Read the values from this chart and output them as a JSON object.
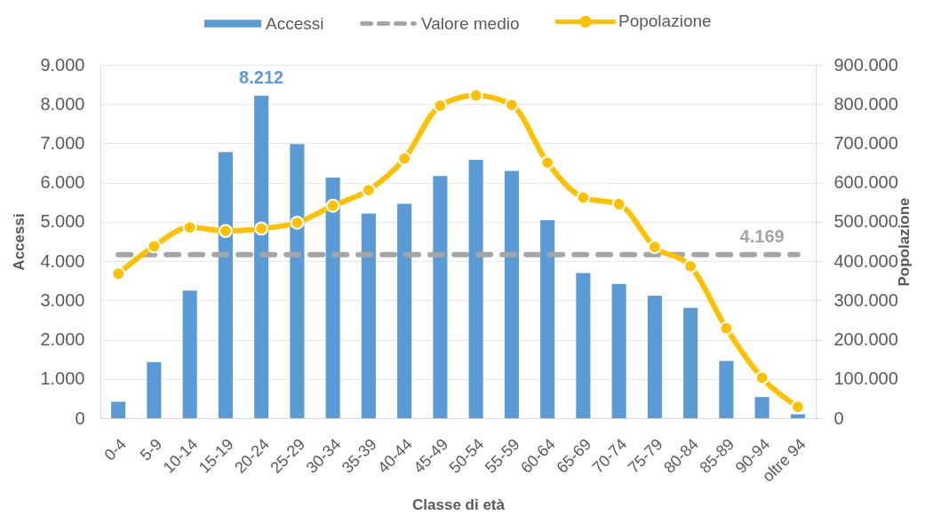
{
  "chart_data": {
    "type": "bar",
    "xlabel": "Classe di età",
    "ylabel": "Accessi",
    "y2label": "Popolazione",
    "categories": [
      "0-4",
      "5-9",
      "10-14",
      "15-19",
      "20-24",
      "25-29",
      "30-34",
      "35-39",
      "40-44",
      "45-49",
      "50-54",
      "55-59",
      "60-64",
      "65-69",
      "70-74",
      "75-79",
      "80-84",
      "85-89",
      "90-94",
      "oltre 94"
    ],
    "ylim": [
      0,
      9000
    ],
    "yticks": [
      0,
      {
        "value": 1000,
        "label": "1.000"
      },
      {
        "value": 2000,
        "label": "2.000"
      },
      {
        "value": 3000,
        "label": "3.000"
      },
      {
        "value": 4000,
        "label": "4.000"
      },
      {
        "value": 5000,
        "label": "5.000"
      },
      {
        "value": 6000,
        "label": "6.000"
      },
      {
        "value": 7000,
        "label": "7.000"
      },
      {
        "value": 8000,
        "label": "8.000"
      },
      {
        "value": 9000,
        "label": "9.000"
      }
    ],
    "y2lim": [
      0,
      900000
    ],
    "y2ticks": [
      0,
      {
        "value": 100000,
        "label": "100.000"
      },
      {
        "value": 200000,
        "label": "200.000"
      },
      {
        "value": 300000,
        "label": "300.000"
      },
      {
        "value": 400000,
        "label": "400.000"
      },
      {
        "value": 500000,
        "label": "500.000"
      },
      {
        "value": 600000,
        "label": "600.000"
      },
      {
        "value": 700000,
        "label": "700.000"
      },
      {
        "value": 800000,
        "label": "800.000"
      },
      {
        "value": 900000,
        "label": "900.000"
      }
    ],
    "grid": "y",
    "legend": "top",
    "series": [
      {
        "name": "Accessi",
        "color": "#5b9bd5",
        "values": [
          420,
          1430,
          3250,
          6780,
          8212,
          6980,
          6130,
          5210,
          5460,
          6170,
          6580,
          6300,
          5040,
          3700,
          3420,
          3120,
          2810,
          1460,
          540,
          100
        ],
        "value_labels": [
          null,
          null,
          null,
          null,
          "8.212",
          null,
          null,
          null,
          null,
          null,
          null,
          null,
          null,
          null,
          null,
          null,
          null,
          null,
          null,
          null
        ]
      },
      {
        "name": "Valore medio",
        "type": "line",
        "color": "#a5a5a5",
        "line_style": "dashed",
        "marker": "none",
        "values": [
          4169,
          4169,
          4169,
          4169,
          4169,
          4169,
          4169,
          4169,
          4169,
          4169,
          4169,
          4169,
          4169,
          4169,
          4169,
          4169,
          4169,
          4169,
          4169,
          4169
        ],
        "value_labels": [
          null,
          null,
          null,
          null,
          null,
          null,
          null,
          null,
          null,
          null,
          null,
          null,
          null,
          null,
          null,
          null,
          null,
          null,
          "4.169",
          null
        ]
      },
      {
        "name": "Popolazione",
        "type": "line",
        "axis": "y2",
        "color": "#ffc000",
        "marker": "circle",
        "values": [
          368000,
          438000,
          486000,
          477000,
          483000,
          498000,
          541000,
          581000,
          661000,
          796000,
          822000,
          798000,
          651000,
          562000,
          545000,
          436000,
          387000,
          229000,
          103000,
          29000
        ]
      }
    ]
  }
}
